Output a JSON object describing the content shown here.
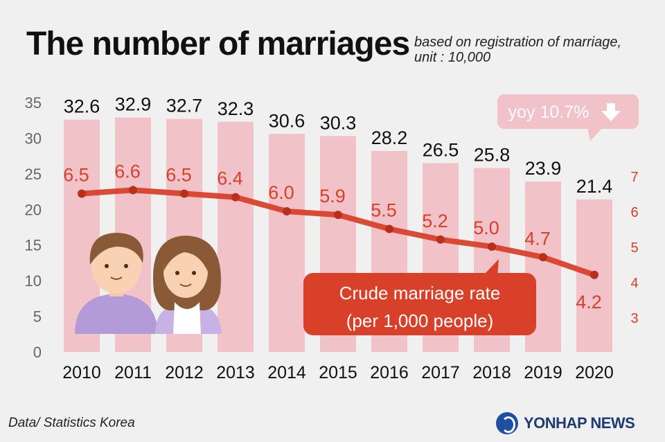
{
  "title": "The number of marriages",
  "subtitle_line1": "based on registration of marriage,",
  "subtitle_line2": "unit : 10,000",
  "source": "Data/ Statistics Korea",
  "brand": "YONHAP NEWS",
  "callout": "yoy 10.7%",
  "rate_box_line1": "Crude marriage rate",
  "rate_box_line2": "(per 1,000 people)",
  "colors": {
    "bar": "#f2c2c9",
    "line": "#d8402a",
    "label_dark": "#111111",
    "label_red": "#d8402a",
    "callout_bg": "#f2c2c9",
    "rate_box_bg": "#d8402a"
  },
  "icons": [
    "down-arrow-icon",
    "couple-illustration",
    "yonhap-logo-icon"
  ],
  "chart_data": {
    "type": "bar",
    "categories": [
      "2010",
      "2011",
      "2012",
      "2013",
      "2014",
      "2015",
      "2016",
      "2017",
      "2018",
      "2019",
      "2020"
    ],
    "series": [
      {
        "values": [
          32.6,
          32.9,
          32.7,
          32.3,
          30.6,
          30.3,
          28.2,
          26.5,
          25.8,
          23.9,
          21.4
        ],
        "labels": [
          "32.6",
          "32.9",
          "32.7",
          "32.3",
          "30.6",
          "30.3",
          "28.2",
          "26.5",
          "25.8",
          "23.9",
          "21.4"
        ],
        "axis": "left"
      },
      {
        "name": "Crude marriage rate (per 1,000 people)",
        "type": "line",
        "values": [
          6.5,
          6.6,
          6.5,
          6.4,
          6.0,
          5.9,
          5.5,
          5.2,
          5.0,
          4.7,
          4.2
        ],
        "labels": [
          "6.5",
          "6.6",
          "6.5",
          "6.4",
          "6.0",
          "5.9",
          "5.5",
          "5.2",
          "5.0",
          "4.7",
          "4.2"
        ],
        "axis": "right"
      }
    ],
    "ylim": [
      0,
      35
    ],
    "yticks": [
      "0",
      "5",
      "10",
      "15",
      "20",
      "25",
      "30",
      "35"
    ],
    "y2ticks": [
      "3",
      "4",
      "5",
      "6",
      "7"
    ],
    "xlabel": "",
    "ylabel": "",
    "legend": "none",
    "grid": false
  }
}
